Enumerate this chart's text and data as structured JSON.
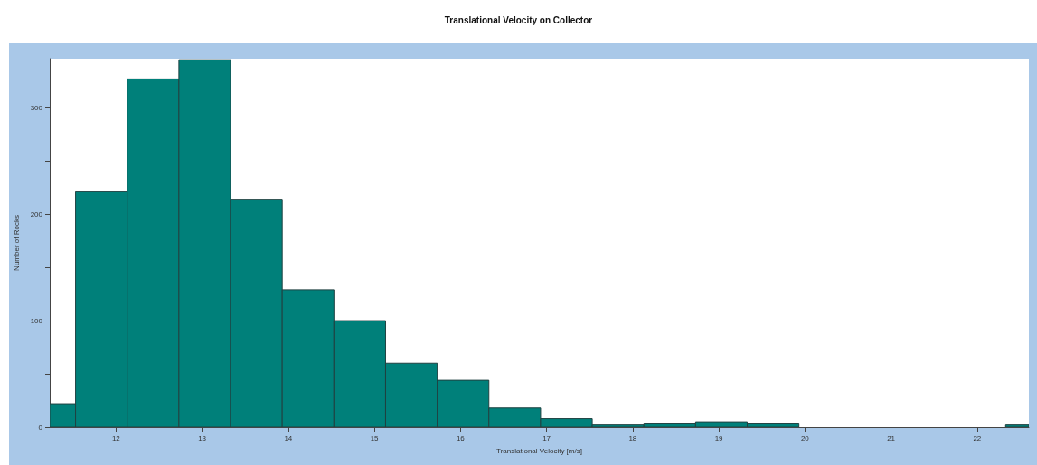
{
  "chart_data": {
    "type": "histogram",
    "title": "Translational Velocity on Collector",
    "xlabel": "Translational Velocity [m/s]",
    "ylabel": "Number of Rocks",
    "bins": [
      11.23,
      11.53,
      12.13,
      12.73,
      13.33,
      13.93,
      14.53,
      15.13,
      15.73,
      16.33,
      16.93,
      17.53,
      18.13,
      18.73,
      19.33,
      19.93,
      22.33,
      22.6
    ],
    "values": [
      22,
      221,
      327,
      345,
      214,
      129,
      100,
      60,
      44,
      18,
      8,
      2,
      3,
      5,
      3,
      0,
      2
    ],
    "color": "#00807a",
    "xlim": [
      11.23,
      22.6
    ],
    "xticks": [
      12,
      13,
      14,
      15,
      16,
      17,
      18,
      19,
      20,
      21,
      22
    ],
    "ylim": [
      0,
      346
    ],
    "yticks": [
      0,
      {
        "value": 50,
        "label": null
      },
      100,
      {
        "value": 150,
        "label": null
      },
      200,
      {
        "value": 250,
        "label": null
      },
      300
    ],
    "grid": false
  }
}
